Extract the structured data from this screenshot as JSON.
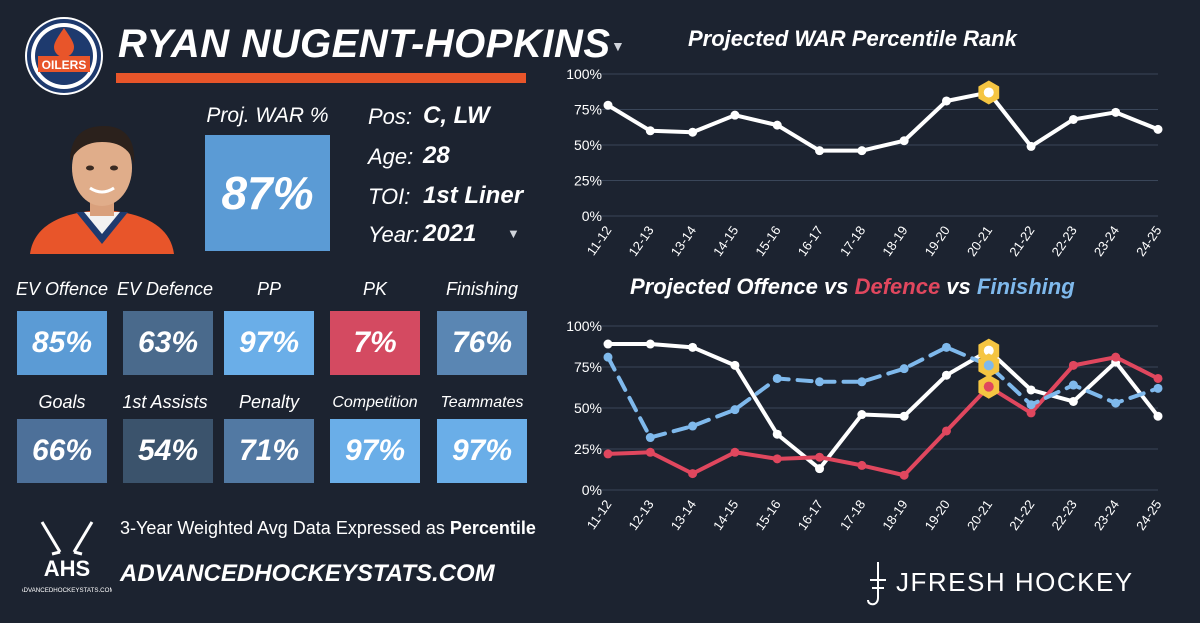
{
  "header": {
    "player_name": "RYAN NUGENT-HOPKINS",
    "team_logo_text": "OILERS",
    "team_logo_icon": "oilers-drop-icon"
  },
  "bio": {
    "pos_label": "Pos:",
    "pos_value": "C, LW",
    "age_label": "Age:",
    "age_value": "28",
    "toi_label": "TOI:",
    "toi_value": "1st Liner",
    "year_label": "Year:",
    "year_value": "2021"
  },
  "proj_war": {
    "label": "Proj. WAR %",
    "value": "87%"
  },
  "stats": [
    {
      "label": "EV Offence",
      "value": "85%",
      "color": "#5b9bd5"
    },
    {
      "label": "EV Defence",
      "value": "63%",
      "color": "#4a6a8c"
    },
    {
      "label": "PP",
      "value": "97%",
      "color": "#6aaee8"
    },
    {
      "label": "PK",
      "value": "7%",
      "color": "#d44a61"
    },
    {
      "label": "Finishing",
      "value": "76%",
      "color": "#5a86b3"
    },
    {
      "label": "Goals",
      "value": "66%",
      "color": "#4d7099"
    },
    {
      "label": "1st Assists",
      "value": "54%",
      "color": "#3b536c"
    },
    {
      "label": "Penalty",
      "value": "71%",
      "color": "#5279a3"
    },
    {
      "label": "Competition",
      "value": "97%",
      "color": "#6aaee8"
    },
    {
      "label": "Teammates",
      "value": "97%",
      "color": "#6aaee8"
    }
  ],
  "footer": {
    "note_prefix": "3-Year Weighted Avg Data Expressed as ",
    "note_emphasis": "Percentile",
    "site": "ADVANCEDHOCKEYSTATS.COM",
    "ahs_logo_text": "AHS",
    "ahs_logo_sub": "ADVANCEDHOCKEYSTATS.COM",
    "brand": "JFRESH HOCKEY"
  },
  "colors": {
    "background": "#1c2330",
    "accent_orange": "#e8552a",
    "offence": "#ffffff",
    "defence": "#e0475e",
    "finishing": "#7fb9ec",
    "highlight": "#f5c542"
  },
  "chart_data": [
    {
      "type": "line",
      "title": "Projected WAR Percentile Rank",
      "x": [
        "11-12",
        "12-13",
        "13-14",
        "14-15",
        "15-16",
        "16-17",
        "17-18",
        "18-19",
        "19-20",
        "20-21",
        "21-22",
        "22-23",
        "23-24",
        "24-25"
      ],
      "series": [
        {
          "values": [
            78,
            60,
            59,
            71,
            64,
            46,
            46,
            53,
            81,
            87,
            49,
            68,
            73,
            61
          ],
          "color": "#ffffff",
          "dashed": false
        }
      ],
      "highlight_index": 9,
      "yticks": [
        "0%",
        "25%",
        "50%",
        "75%",
        "100%"
      ],
      "ylim": [
        0,
        100
      ],
      "grid": true
    },
    {
      "type": "line",
      "title_parts": [
        {
          "text": "Projected Offence",
          "color": "#ffffff"
        },
        {
          "text": " vs ",
          "color": "#ffffff"
        },
        {
          "text": "Defence",
          "color": "#e0475e"
        },
        {
          "text": " vs ",
          "color": "#ffffff"
        },
        {
          "text": "Finishing",
          "color": "#7fb9ec"
        }
      ],
      "x": [
        "11-12",
        "12-13",
        "13-14",
        "14-15",
        "15-16",
        "16-17",
        "17-18",
        "18-19",
        "19-20",
        "20-21",
        "21-22",
        "22-23",
        "23-24",
        "24-25"
      ],
      "series": [
        {
          "values": [
            89,
            89,
            87,
            76,
            34,
            13,
            46,
            45,
            70,
            85,
            61,
            54,
            78,
            45
          ],
          "color": "#ffffff",
          "dashed": false
        },
        {
          "values": [
            22,
            23,
            10,
            23,
            19,
            20,
            15,
            9,
            36,
            63,
            47,
            76,
            81,
            68
          ],
          "color": "#e0475e",
          "dashed": false
        },
        {
          "values": [
            81,
            32,
            39,
            49,
            68,
            66,
            66,
            74,
            87,
            76,
            52,
            64,
            53,
            62
          ],
          "color": "#7fb9ec",
          "dashed": true
        }
      ],
      "highlight_index": 9,
      "yticks": [
        "0%",
        "25%",
        "50%",
        "75%",
        "100%"
      ],
      "ylim": [
        0,
        100
      ],
      "grid": true
    }
  ]
}
